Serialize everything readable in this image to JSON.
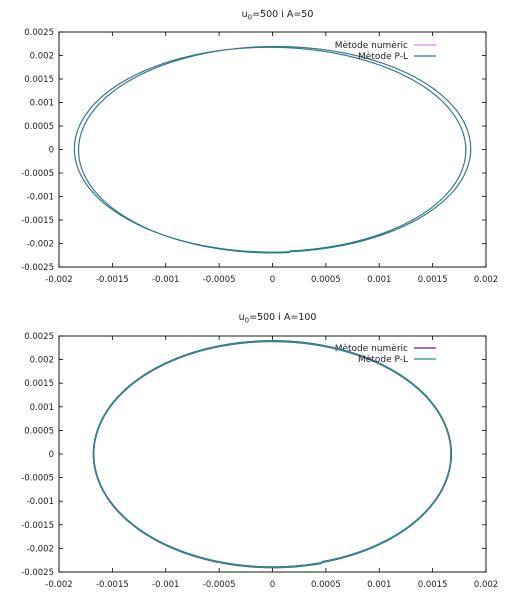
{
  "chart_data": [
    {
      "type": "line",
      "title": "u0=500  i  A=50",
      "title_parts": {
        "base": "u",
        "subscript": "0",
        "rest": "=500   i    A=50"
      },
      "xlabel": "",
      "ylabel": "",
      "xlim": [
        -0.002,
        0.002
      ],
      "ylim": [
        -0.0025,
        0.0025
      ],
      "x_ticks": [
        "-0.002",
        "-0.0015",
        "-0.001",
        "-0.0005",
        "0",
        "0.0005",
        "0.001",
        "0.0015",
        "0.002"
      ],
      "y_ticks": [
        "0.0025",
        "0.002",
        "0.0015",
        "0.001",
        "0.0005",
        "0",
        "-0.0005",
        "-0.001",
        "-0.0015",
        "-0.002",
        "-0.0025"
      ],
      "grid": false,
      "legend_position": "top-right",
      "series": [
        {
          "name": "Mètode numèric",
          "color": "#dd88dd",
          "shape": {
            "cx": 0.0,
            "cy": 0.0,
            "rx_start": 0.00183,
            "rx_end": 0.00184,
            "ry": 0.0022,
            "center_shift_x": -3e-05,
            "phase_offset_deg": 5,
            "revolutions": 2
          }
        },
        {
          "name": "Mètode P-L",
          "color": "#1a8080",
          "shape": {
            "cx": 0.0,
            "cy": 0.0,
            "rx_start": 0.00183,
            "rx_end": 0.00184,
            "ry": 0.0022,
            "center_shift_x": -3e-05,
            "phase_offset_deg": 5,
            "revolutions": 2
          }
        }
      ]
    },
    {
      "type": "line",
      "title": "u0=500  i  A=100",
      "title_parts": {
        "base": "u",
        "subscript": "0",
        "rest": "=500   i    A=100"
      },
      "xlabel": "",
      "ylabel": "",
      "xlim": [
        -0.002,
        0.002
      ],
      "ylim": [
        -0.0025,
        0.0025
      ],
      "x_ticks": [
        "-0.002",
        "-0.0015",
        "-0.001",
        "-0.0005",
        "0",
        "0.0005",
        "0.001",
        "0.0015",
        "0.002"
      ],
      "y_ticks": [
        "0.0025",
        "0.002",
        "0.0015",
        "0.001",
        "0.0005",
        "0",
        "-0.0005",
        "-0.001",
        "-0.0015",
        "-0.002",
        "-0.0025"
      ],
      "grid": false,
      "legend_position": "top-right",
      "series": [
        {
          "name": "Mètode numèric",
          "color": "#6a1a8a",
          "shape": {
            "cx": 0.0,
            "cy": 0.0,
            "rx_start": 0.00167,
            "rx_end": 0.00168,
            "ry": 0.00241,
            "center_shift_x": 0.0,
            "phase_offset_deg": 16,
            "revolutions": 2
          }
        },
        {
          "name": "Mètode P-L",
          "color": "#2a8a8a",
          "shape": {
            "cx": 0.0,
            "cy": 0.0,
            "rx_start": 0.00167,
            "rx_end": 0.00168,
            "ry": 0.00241,
            "center_shift_x": 0.0,
            "phase_offset_deg": 16,
            "revolutions": 2
          }
        }
      ]
    }
  ]
}
